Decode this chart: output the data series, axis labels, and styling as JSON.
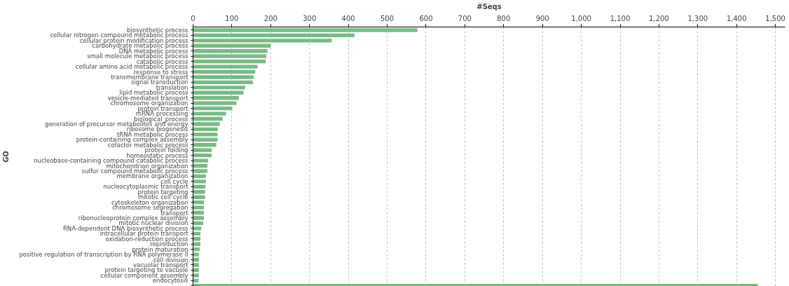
{
  "chart_data": {
    "type": "bar",
    "orientation": "horizontal",
    "xlabel": "#Seqs",
    "ylabel": "GO",
    "categories": [
      "biosynthetic process",
      "cellular nitrogen compound metabolic process",
      "cellular protein modification process",
      "carbohydrate metabolic process",
      "DNA metabolic process",
      "small molecule metabolic process",
      "catabolic process",
      "cellular amino acid metabolic process",
      "response to stress",
      "transmembrane transport",
      "signal transduction",
      "translation",
      "lipid metabolic process",
      "vesicle-mediated transport",
      "chromosome organization",
      "protein transport",
      "mRNA processing",
      "biological_process",
      "generation of precursor metabolites and energy",
      "ribosome biogenesis",
      "tRNA metabolic process",
      "protein-containing complex assembly",
      "cofactor metabolic process",
      "protein folding",
      "homeostatic process",
      "nucleobase-containing compound catabolic process",
      "mitochondrion organization",
      "sulfur compound metabolic process",
      "membrane organization",
      "cell cycle",
      "nucleocytoplasmic transport",
      "protein targeting",
      "mitotic cell cycle",
      "cytoskeleton organization",
      "chromosome segregation",
      "transport",
      "ribonucleoprotein complex assembly",
      "mitotic nuclear division",
      "RNA-dependent DNA biosynthetic process",
      "intracellular protein transport",
      "oxidation-reduction process",
      "reproduction",
      "protein maturation",
      "positive regulation of transcription by RNA polymerase II",
      "cell division",
      "vacuolar transport",
      "protein targeting to vacuole",
      "cellular component assembly",
      "endocytosis",
      null
    ],
    "values": [
      578,
      416,
      357,
      200,
      192,
      189,
      187,
      166,
      160,
      156,
      154,
      134,
      130,
      118,
      112,
      101,
      85,
      76,
      69,
      64,
      63,
      63,
      60,
      48,
      48,
      39,
      37,
      37,
      33,
      33,
      32,
      31,
      31,
      28,
      28,
      28,
      28,
      26,
      21,
      19,
      19,
      19,
      17,
      15,
      15,
      15,
      15,
      15,
      14,
      1455
    ],
    "color": "#77bb83",
    "xlim": [
      0,
      1525
    ],
    "xticks": [
      0,
      100,
      200,
      300,
      400,
      500,
      600,
      700,
      800,
      900,
      {
        "value": 1000,
        "label": "1,000"
      },
      {
        "value": 1100,
        "label": "1,100"
      },
      {
        "value": 1200,
        "label": "1,200"
      },
      {
        "value": 1300,
        "label": "1,300"
      },
      {
        "value": 1400,
        "label": "1,400"
      },
      {
        "value": 1500,
        "label": "1,500"
      }
    ],
    "grid": "x"
  }
}
